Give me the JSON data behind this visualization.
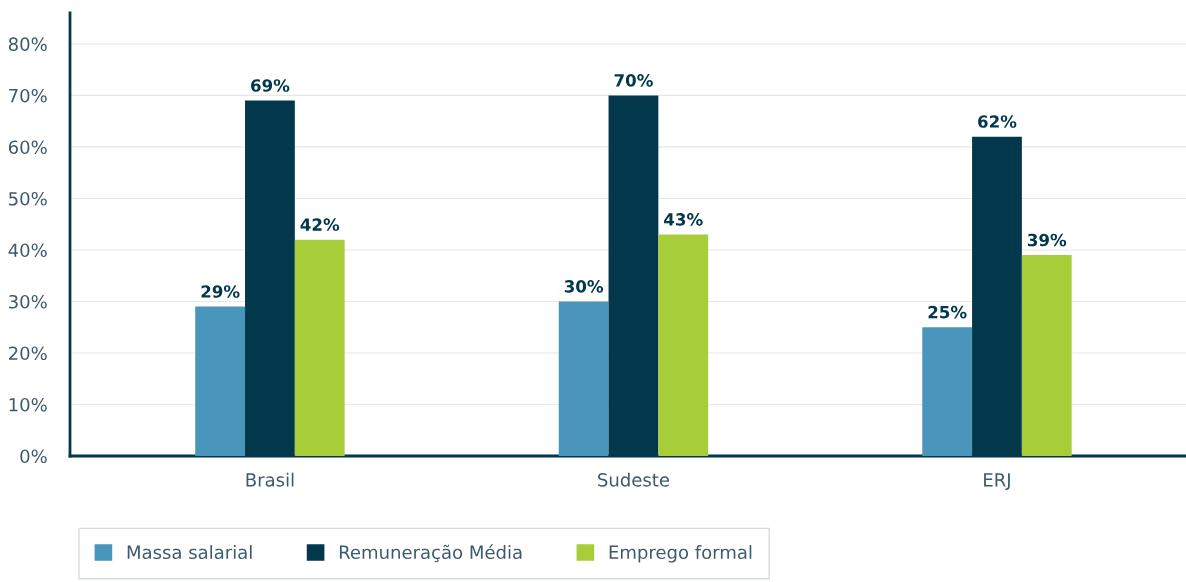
{
  "chart_data": {
    "type": "bar",
    "categories": [
      "Brasil",
      "Sudeste",
      "ERJ"
    ],
    "series": [
      {
        "name": "Massa salarial",
        "color": "#4a95bb",
        "values": [
          29,
          30,
          25
        ],
        "value_labels": [
          "29%",
          "30%",
          "25%"
        ]
      },
      {
        "name": "Remuneração Média",
        "color": "#03384c",
        "values": [
          69,
          70,
          62
        ],
        "value_labels": [
          "69%",
          "70%",
          "62%"
        ]
      },
      {
        "name": "Emprego formal",
        "color": "#a7cd38",
        "values": [
          42,
          43,
          39
        ],
        "value_labels": [
          "42%",
          "43%",
          "39%"
        ]
      }
    ],
    "ylim": [
      0,
      86
    ],
    "yticks": [
      {
        "value": 0,
        "label": "0%"
      },
      {
        "value": 10,
        "label": "10%"
      },
      {
        "value": 20,
        "label": "20%"
      },
      {
        "value": 30,
        "label": "30%"
      },
      {
        "value": 40,
        "label": "40%"
      },
      {
        "value": 50,
        "label": "50%"
      },
      {
        "value": 60,
        "label": "60%"
      },
      {
        "value": 70,
        "label": "70%"
      },
      {
        "value": 80,
        "label": "80%"
      }
    ],
    "grid": "y",
    "legend": "bottom"
  }
}
